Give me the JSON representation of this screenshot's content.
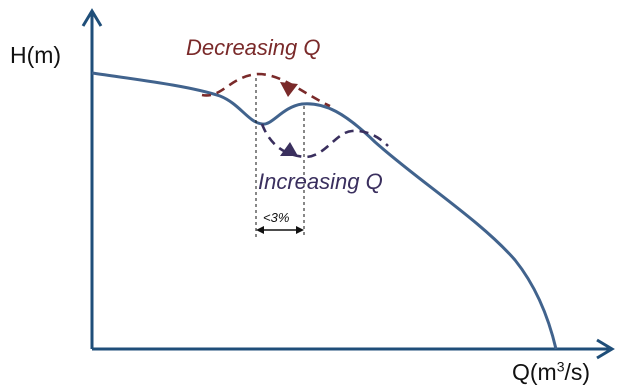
{
  "axes": {
    "y_label": "H(m)",
    "x_label_base": "Q(m",
    "x_label_sup": "3",
    "x_label_tail": "/s)"
  },
  "annotations": {
    "decreasing": "Decreasing Q",
    "increasing": "Increasing Q",
    "width": "<3%"
  },
  "colors": {
    "axis": "#1f4e79",
    "curve": "#41638d",
    "decreasing": "#7a2a2a",
    "increasing": "#3a2f5e"
  },
  "icons": {
    "decreasing_marker": "triangle-down-icon",
    "increasing_marker": "triangle-up-icon"
  }
}
